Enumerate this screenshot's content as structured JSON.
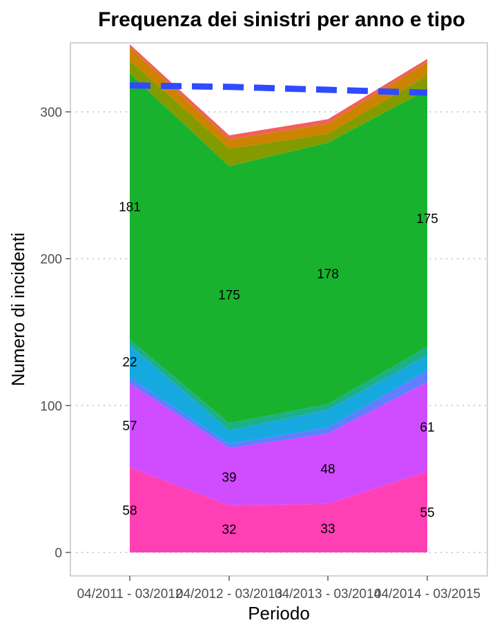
{
  "chart_data": {
    "type": "area",
    "stacked": true,
    "title": "Frequenza dei sinistri per anno e tipo",
    "xlabel": "Periodo",
    "ylabel": "Numero di incidenti",
    "categories": [
      "04/2011 - 03/2012",
      "04/2012 - 03/2013",
      "04/2013 - 03/2014",
      "04/2014 - 03/2015"
    ],
    "ylim": [
      -16,
      347
    ],
    "yticks": [
      0,
      100,
      200,
      300
    ],
    "grid": "horizontal dotted",
    "legend": "none",
    "series": [
      {
        "color": "#ff40b5",
        "values": [
          58,
          32,
          33,
          55
        ],
        "labels": [
          "58",
          "32",
          "33",
          "55"
        ]
      },
      {
        "color": "#cf4dff",
        "values": [
          57,
          39,
          48,
          61
        ],
        "labels": [
          "57",
          "39",
          "48",
          "61"
        ]
      },
      {
        "color": "#5f7fff",
        "values": [
          4,
          3,
          4,
          8
        ]
      },
      {
        "color": "#15a9e0",
        "values": [
          22,
          9,
          12,
          10
        ],
        "labels": [
          "22",
          "",
          "",
          ""
        ]
      },
      {
        "color": "#1cb08a",
        "values": [
          4,
          5,
          4,
          6
        ]
      },
      {
        "color": "#19b22f",
        "values": [
          181,
          175,
          178,
          175
        ],
        "labels": [
          "181",
          "175",
          "178",
          "175"
        ]
      },
      {
        "color": "#849b00",
        "values": [
          9,
          12,
          6,
          10
        ]
      },
      {
        "color": "#cd8300",
        "values": [
          9,
          6,
          7,
          9
        ]
      },
      {
        "color": "#f0615a",
        "values": [
          2,
          3,
          3,
          2
        ]
      }
    ],
    "trend": {
      "color": "#2f4bff",
      "style": "dashed",
      "values": [
        318,
        317,
        315,
        313
      ]
    }
  }
}
